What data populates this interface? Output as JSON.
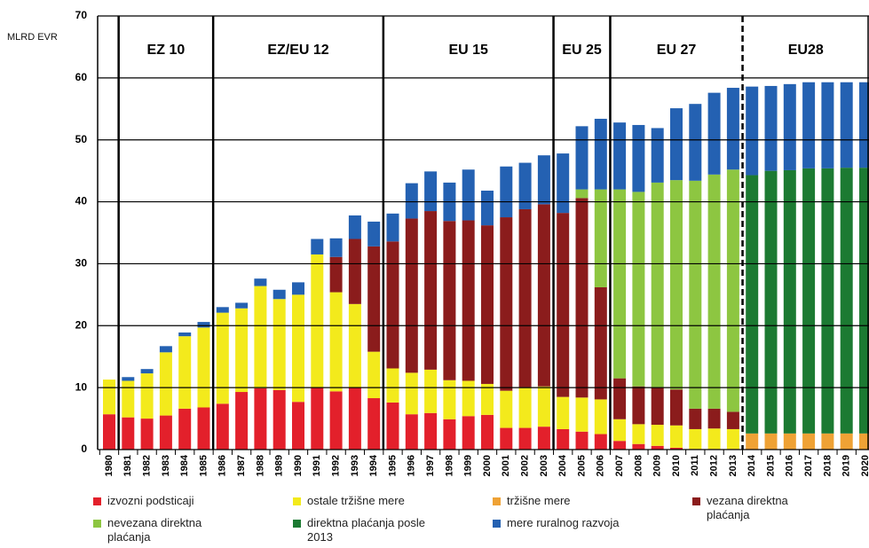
{
  "chart_data": {
    "type": "stacked-bar",
    "y_label": "MLRD EVR",
    "categories": [
      "1980",
      "1981",
      "1982",
      "1983",
      "1984",
      "1985",
      "1986",
      "1987",
      "1988",
      "1989",
      "1990",
      "1991",
      "1992",
      "1993",
      "1994",
      "1995",
      "1996",
      "1997",
      "1998",
      "1999",
      "2000",
      "2001",
      "2002",
      "2003",
      "2004",
      "2005",
      "2006",
      "2007",
      "2008",
      "2009",
      "2010",
      "2011",
      "2012",
      "2013",
      "2014",
      "2015",
      "2016",
      "2017",
      "2018",
      "2019",
      "2020"
    ],
    "annotations": [
      "EZ 10",
      "EZ/EU 12",
      "EU 15",
      "EU 25",
      "EU 27",
      "EU28"
    ],
    "ylim": [
      0,
      70
    ],
    "yticks": [
      0,
      10,
      20,
      30,
      40,
      50,
      60,
      70
    ],
    "grid": true,
    "series": [
      {
        "name": "izvozni podsticaji",
        "color": "#e3202b",
        "values": [
          5.7,
          5.2,
          5,
          5.5,
          6.6,
          6.8,
          7.4,
          9.3,
          9.9,
          9.6,
          7.7,
          10,
          9.4,
          10,
          8.3,
          7.6,
          5.7,
          5.9,
          4.9,
          5.4,
          5.6,
          3.5,
          3.5,
          3.7,
          3.3,
          2.9,
          2.5,
          1.4,
          0.9,
          0.6,
          0.3,
          0.1,
          0.1,
          0.1,
          null,
          null,
          null,
          null,
          null,
          null,
          null
        ]
      },
      {
        "name": "ostale tržišne mere",
        "color": "#f3ea1c",
        "values": [
          5.6,
          5.9,
          7.3,
          10.2,
          11.7,
          12.9,
          14.7,
          13.5,
          16.5,
          14.7,
          17.3,
          21.5,
          16,
          13.5,
          7.5,
          5.5,
          6.7,
          7,
          6.3,
          5.7,
          5,
          6,
          6.6,
          6.5,
          5.2,
          5.5,
          5.6,
          3.5,
          3.2,
          3.4,
          3.6,
          3.2,
          3.3,
          3.2,
          null,
          null,
          null,
          null,
          null,
          null,
          null
        ]
      },
      {
        "name": "tržišne mere",
        "color": "#efa235",
        "values": [
          null,
          null,
          null,
          null,
          null,
          null,
          null,
          null,
          null,
          null,
          null,
          null,
          null,
          null,
          null,
          null,
          null,
          null,
          null,
          null,
          null,
          null,
          null,
          null,
          null,
          null,
          null,
          null,
          null,
          null,
          null,
          null,
          null,
          null,
          2.6,
          2.6,
          2.6,
          2.6,
          2.6,
          2.6,
          2.6
        ]
      },
      {
        "name": "vezana direktna plaćanja",
        "color": "#8b1c1c",
        "values": [
          null,
          null,
          null,
          null,
          null,
          null,
          null,
          null,
          null,
          null,
          null,
          null,
          5.7,
          10.5,
          17,
          20.5,
          24.9,
          25.6,
          25.7,
          25.9,
          25.6,
          28,
          28.7,
          29.4,
          29.7,
          32.2,
          18.1,
          6.6,
          6.1,
          6.1,
          5.8,
          3.3,
          3.2,
          2.8,
          null,
          null,
          null,
          null,
          null,
          null,
          null
        ]
      },
      {
        "name": "nevezana direktna plaćanja",
        "color": "#8dc641",
        "values": [
          null,
          null,
          null,
          null,
          null,
          null,
          null,
          null,
          null,
          null,
          null,
          null,
          null,
          null,
          null,
          null,
          null,
          null,
          null,
          null,
          null,
          null,
          null,
          null,
          null,
          1.4,
          15.8,
          30.5,
          31.4,
          33,
          33.8,
          36.8,
          37.8,
          39.1,
          null,
          null,
          null,
          null,
          null,
          null,
          null
        ]
      },
      {
        "name": "direktna plaćanja posle 2013",
        "color": "#1c7a32",
        "values": [
          null,
          null,
          null,
          null,
          null,
          null,
          null,
          null,
          null,
          null,
          null,
          null,
          null,
          null,
          null,
          null,
          null,
          null,
          null,
          null,
          null,
          null,
          null,
          null,
          null,
          null,
          null,
          null,
          null,
          null,
          null,
          null,
          null,
          null,
          41.7,
          42.4,
          42.5,
          42.8,
          42.8,
          42.9,
          42.9
        ]
      },
      {
        "name": "mere ruralnog razvoja",
        "color": "#2461b2",
        "values": [
          null,
          0.6,
          0.7,
          1,
          0.6,
          0.9,
          0.9,
          0.9,
          1.2,
          1.5,
          2,
          2.5,
          3,
          3.8,
          4,
          4.5,
          5.7,
          6.4,
          6.2,
          8.2,
          5.6,
          8.2,
          7.5,
          7.9,
          9.6,
          10.2,
          11.4,
          10.8,
          10.8,
          8.8,
          11.6,
          12.4,
          13.2,
          13.2,
          14.3,
          13.7,
          13.9,
          13.9,
          13.9,
          13.8,
          13.8
        ]
      }
    ]
  }
}
